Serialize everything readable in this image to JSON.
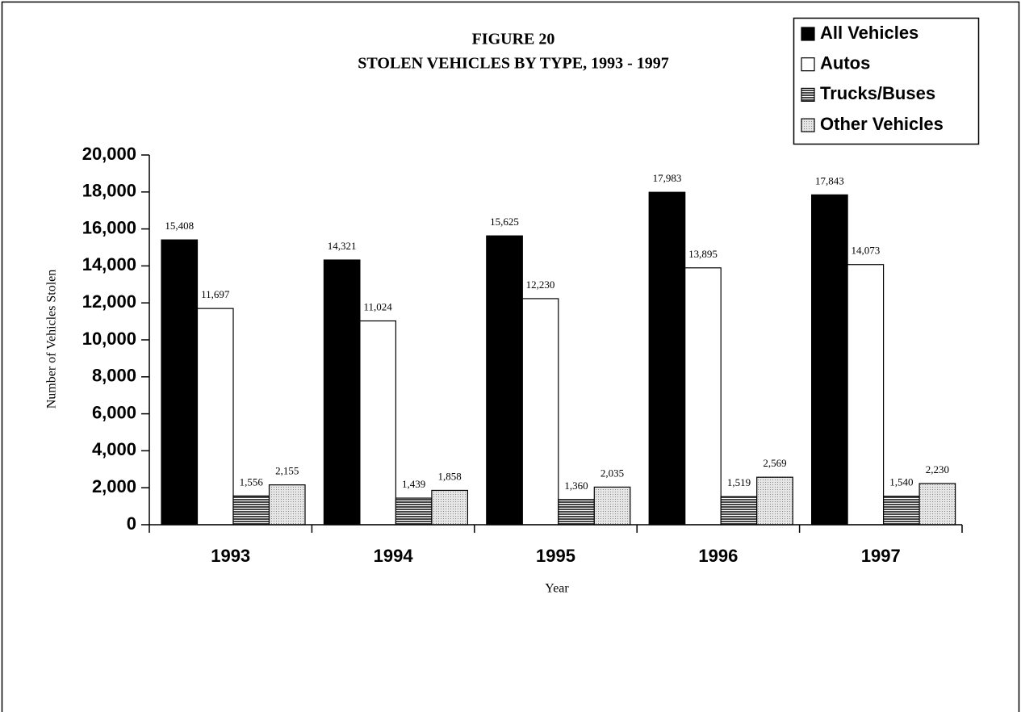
{
  "chart_data": {
    "type": "bar",
    "title": [
      "FIGURE 20",
      "STOLEN VEHICLES BY TYPE, 1993 - 1997"
    ],
    "x_label": "Year",
    "y_label": "Number of Vehicles Stolen",
    "categories": [
      "1993",
      "1994",
      "1995",
      "1996",
      "1997"
    ],
    "series": [
      {
        "name": "All Vehicles",
        "color": "#000000",
        "pattern": "solid",
        "values": [
          15408,
          14321,
          15625,
          17983,
          17843
        ],
        "value_labels": [
          "15,408",
          "14,321",
          "15,625",
          "17,983",
          "17,843"
        ]
      },
      {
        "name": "Autos",
        "color": "#ffffff",
        "pattern": "solid",
        "values": [
          11697,
          11024,
          12230,
          13895,
          14073
        ],
        "value_labels": [
          "11,697",
          "11,024",
          "12,230",
          "13,895",
          "14,073"
        ]
      },
      {
        "name": "Trucks/Buses",
        "color": "#555555",
        "pattern": "hlines",
        "values": [
          1556,
          1439,
          1360,
          1519,
          1540
        ],
        "value_labels": [
          "1,556",
          "1,439",
          "1,360",
          "1,519",
          "1,540"
        ]
      },
      {
        "name": "Other Vehicles",
        "color": "#bbbbbb",
        "pattern": "dots",
        "values": [
          2155,
          1858,
          2035,
          2569,
          2230
        ],
        "value_labels": [
          "2,155",
          "1,858",
          "2,035",
          "2,569",
          "2,230"
        ]
      }
    ],
    "ylim": [
      0,
      20000
    ],
    "yticks": [
      0,
      {
        "value": 2000,
        "label": "2,000"
      },
      {
        "value": 4000,
        "label": "4,000"
      },
      {
        "value": 6000,
        "label": "6,000"
      },
      {
        "value": 8000,
        "label": "8,000"
      },
      {
        "value": 10000,
        "label": "10,000"
      },
      {
        "value": 12000,
        "label": "12,000"
      },
      {
        "value": 14000,
        "label": "14,000"
      },
      {
        "value": 16000,
        "label": "16,000"
      },
      {
        "value": 18000,
        "label": "18,000"
      },
      {
        "value": 20000,
        "label": "20,000"
      }
    ],
    "legend": "top-right",
    "grid": false
  }
}
